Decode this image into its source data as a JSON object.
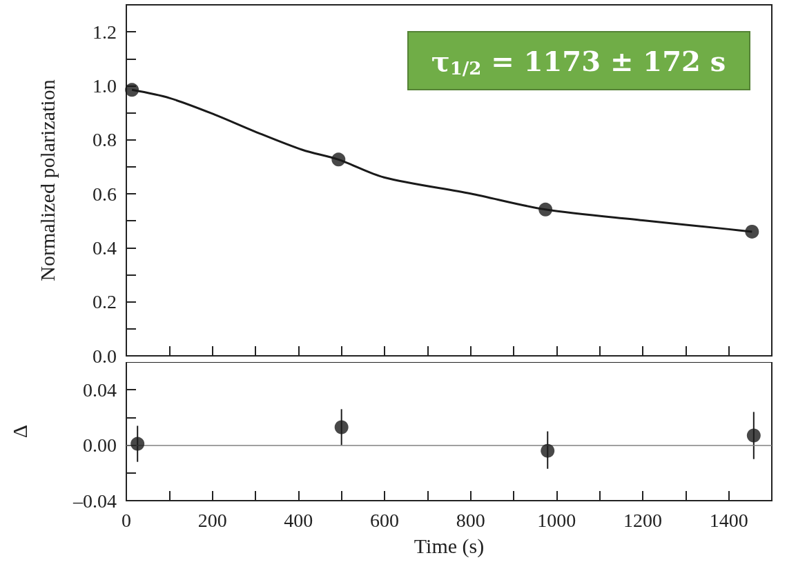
{
  "chart_data": [
    {
      "type": "scatter",
      "ylabel": "Normalized polarization",
      "annotations": [
        "τ$_{1/2}$ = 1173 ± 172 s"
      ],
      "xlim": [
        0,
        1500
      ],
      "xticks": [
        {
          "value": 0,
          "label": null
        },
        {
          "value": 100,
          "label": null
        },
        {
          "value": 200,
          "label": null
        },
        {
          "value": 300,
          "label": null
        },
        {
          "value": 400,
          "label": null
        },
        {
          "value": 500,
          "label": null
        },
        {
          "value": 600,
          "label": null
        },
        {
          "value": 700,
          "label": null
        },
        {
          "value": 800,
          "label": null
        },
        {
          "value": 900,
          "label": null
        },
        {
          "value": 1000,
          "label": null
        },
        {
          "value": 1100,
          "label": null
        },
        {
          "value": 1200,
          "label": null
        },
        {
          "value": 1300,
          "label": null
        },
        {
          "value": 1400,
          "label": null
        }
      ],
      "ylim": [
        0,
        1.3
      ],
      "yticks": [
        {
          "value": 0,
          "label": "0.0"
        },
        {
          "value": 0.1,
          "label": null
        },
        {
          "value": 0.2,
          "label": "0.2"
        },
        {
          "value": 0.3,
          "label": null
        },
        {
          "value": 0.4,
          "label": "0.4"
        },
        {
          "value": 0.5,
          "label": null
        },
        {
          "value": 0.6,
          "label": "0.6"
        },
        {
          "value": 0.7,
          "label": null
        },
        {
          "value": 0.8,
          "label": "0.8"
        },
        {
          "value": 0.9,
          "label": null
        },
        {
          "value": 1.0,
          "label": "1.0"
        },
        {
          "value": 1.1,
          "label": null
        },
        {
          "value": 1.2,
          "label": "1.2"
        }
      ],
      "tick_labels": "y",
      "grid": false,
      "marker": "circle",
      "series": [
        {
          "color": "#1a1a1a",
          "x": [
            13,
            493,
            974,
            1454
          ],
          "values": [
            0.985,
            0.727,
            0.542,
            0.46
          ]
        },
        {
          "type": "line",
          "color": "#1a1a1a",
          "marker": "none",
          "x": [
            13,
            100,
            206,
            300,
            409,
            493,
            599,
            800,
            974,
            1200,
            1400,
            1454
          ],
          "values": [
            0.985,
            0.955,
            0.893,
            0.83,
            0.763,
            0.727,
            0.661,
            0.601,
            0.542,
            0.502,
            0.469,
            0.46
          ]
        }
      ]
    },
    {
      "type": "scatter",
      "xlabel": "Time (s)",
      "ylabel": "Δ",
      "xlim": [
        0,
        1500
      ],
      "xticks": [
        0,
        {
          "value": 100,
          "label": null
        },
        200,
        {
          "value": 300,
          "label": null
        },
        400,
        {
          "value": 500,
          "label": null
        },
        600,
        {
          "value": 700,
          "label": null
        },
        800,
        {
          "value": 900,
          "label": null
        },
        1000,
        {
          "value": 1100,
          "label": null
        },
        1200,
        {
          "value": 1300,
          "label": null
        },
        1400
      ],
      "ylim": [
        -0.04,
        0.06
      ],
      "yticks": [
        {
          "value": -0.04,
          "label": "–0.04"
        },
        {
          "value": -0.02,
          "label": null
        },
        {
          "value": 0,
          "label": "0.00"
        },
        {
          "value": 0.02,
          "label": null
        },
        {
          "value": 0.04,
          "label": "0.04"
        }
      ],
      "grid": false,
      "marker": "circle",
      "color": "#1a1a1a",
      "x": [
        26,
        500,
        979,
        1458
      ],
      "values": [
        0.001,
        0.013,
        -0.004,
        0.007
      ],
      "errors": [
        [
          -0.012,
          0.014
        ],
        [
          0.0,
          0.026
        ],
        [
          -0.017,
          0.01
        ],
        [
          -0.01,
          0.024
        ]
      ],
      "ref_lines": [
        {
          "axis": "y",
          "value": 0,
          "color": "#808080"
        }
      ]
    }
  ]
}
